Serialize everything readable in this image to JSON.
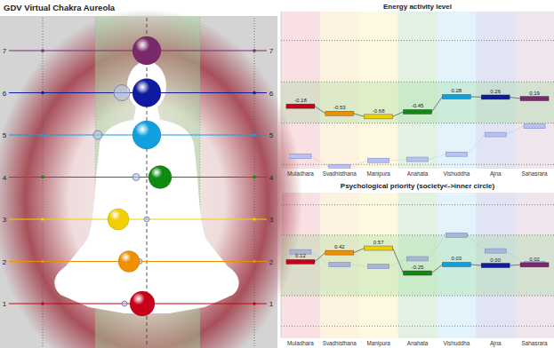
{
  "figure": {
    "title": "GDV Virtual Chakra Aureola",
    "levels": [
      1,
      2,
      3,
      4,
      5,
      6,
      7
    ],
    "colors": [
      "#c8001a",
      "#f09000",
      "#f0d000",
      "#108a10",
      "#10a0e0",
      "#101aa0",
      "#7a2a6a"
    ]
  },
  "chart_data": [
    {
      "type": "step",
      "title": "Energy activity level",
      "categories": [
        "Muladhara",
        "Svadhisthana",
        "Manipura",
        "Anahata",
        "Vishuddha",
        "Ajna",
        "Sahasrara"
      ],
      "ylim": [
        -3.2,
        4.4
      ],
      "yticks": [
        -3,
        -1,
        1,
        3
      ],
      "grid": true,
      "tick_labels": false,
      "series": [
        {
          "values": [
            -0.18,
            -0.53,
            -0.68,
            -0.45,
            0.28,
            0.26,
            0.19
          ],
          "value_labels": [
            "-0.18",
            "-0.53",
            "-0.68",
            "-0.45",
            "0.28",
            "0.26",
            "0.19"
          ],
          "colors": [
            "#c8001a",
            "#f09000",
            "#f0d000",
            "#108a10",
            "#10a0e0",
            "#101aa0",
            "#7a2a6a"
          ],
          "data_labels": true
        },
        {
          "values": [
            -2.6,
            -3.1,
            -2.8,
            -2.75,
            -2.5,
            -1.55,
            -1.15
          ],
          "color": "#b8c0f4",
          "data_labels": false
        }
      ]
    },
    {
      "type": "step",
      "title": "Psychological priority (society<->inner circle)",
      "categories": [
        "Muladhara",
        "Svadhisthana",
        "Manipura",
        "Anahata",
        "Vishuddha",
        "Ajna",
        "Sahasrara"
      ],
      "ylim": [
        -2.4,
        2.4
      ],
      "yticks": [
        -2,
        -1,
        1,
        2
      ],
      "grid": true,
      "tick_labels": false,
      "series": [
        {
          "values": [
            0.12,
            0.42,
            0.57,
            -0.25,
            0.03,
            0.0,
            0.02
          ],
          "value_labels": [
            "0.12",
            "0.42",
            "0.57",
            "-0.25",
            "0.03",
            "0.00",
            "0.02"
          ],
          "colors": [
            "#c8001a",
            "#f09000",
            "#f0d000",
            "#108a10",
            "#10a0e0",
            "#101aa0",
            "#7a2a6a"
          ],
          "data_labels": true
        },
        {
          "values": [
            0.45,
            0.03,
            -0.03,
            0.22,
            1.0,
            0.48,
            0.06
          ],
          "color": "#a8b6d6",
          "data_labels": false
        }
      ]
    }
  ]
}
